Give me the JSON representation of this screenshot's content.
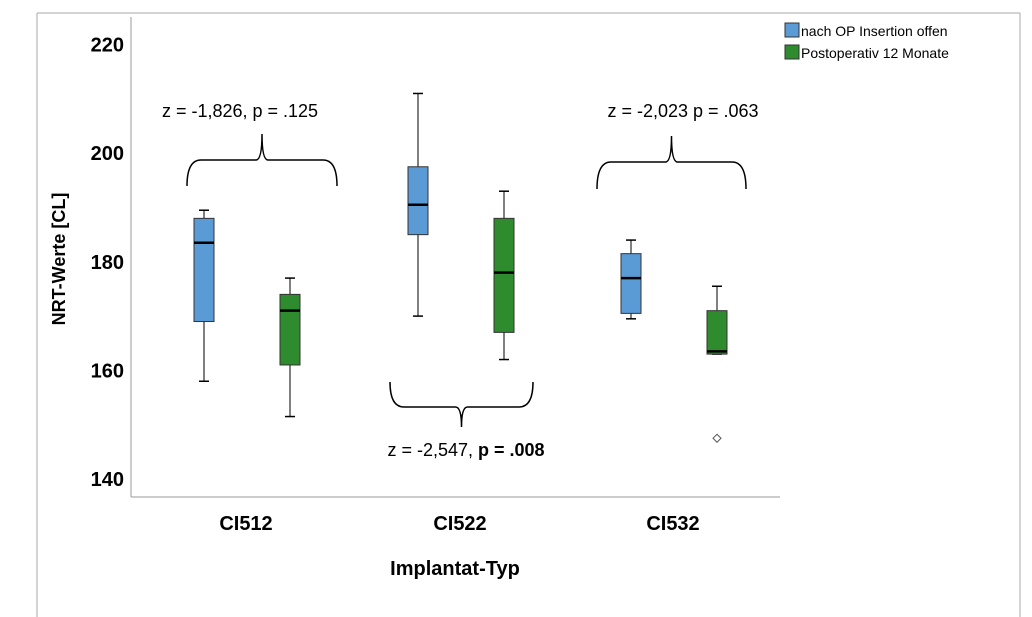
{
  "chart_data": {
    "type": "boxplot",
    "title": "",
    "xlabel": "Implantat-Typ",
    "ylabel": "NRT-Werte [CL]",
    "ylim": [
      138,
      224
    ],
    "yticks": [
      140,
      160,
      180,
      200,
      220
    ],
    "categories": [
      "CI512",
      "CI522",
      "CI532"
    ],
    "legend_position": "top-right",
    "grid": false,
    "series": [
      {
        "name": "nach OP Insertion offen",
        "color": "#5b9bd5",
        "boxes": [
          {
            "min": 158,
            "q1": 169,
            "median": 183.5,
            "q3": 188,
            "max": 189.5,
            "outliers": []
          },
          {
            "min": 170,
            "q1": 185,
            "median": 190.5,
            "q3": 197.5,
            "max": 211,
            "outliers": []
          },
          {
            "min": 169.5,
            "q1": 170.5,
            "median": 177,
            "q3": 181.5,
            "max": 184,
            "outliers": []
          }
        ]
      },
      {
        "name": "Postoperativ 12 Monate",
        "color": "#2e8b2e",
        "boxes": [
          {
            "min": 151.5,
            "q1": 161,
            "median": 171,
            "q3": 174,
            "max": 177,
            "outliers": []
          },
          {
            "min": 162,
            "q1": 167,
            "median": 178,
            "q3": 188,
            "max": 193,
            "outliers": []
          },
          {
            "min": 163,
            "q1": 163,
            "median": 163.5,
            "q3": 171,
            "max": 175.5,
            "outliers": [
              147.5
            ]
          }
        ]
      }
    ],
    "annotations": [
      {
        "category": "CI512",
        "text": "z = -1,826, p = .125",
        "bold_part": "",
        "position": "above"
      },
      {
        "category": "CI522",
        "text": "z = -2,547, ",
        "bold_part": "p = .008",
        "position": "below"
      },
      {
        "category": "CI532",
        "text": "z = -2,023 p = .063",
        "bold_part": "",
        "position": "above"
      }
    ]
  }
}
